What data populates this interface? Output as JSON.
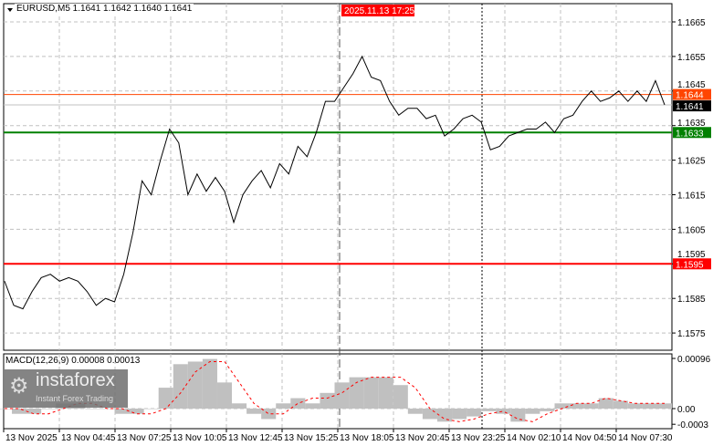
{
  "window": {
    "title": "EURUSD,M5  1.1641 1.1642 1.1640 1.1641"
  },
  "macd_label": "MACD(12,26,9) 0.00008 0.00013",
  "logo": {
    "brand": "instaforex",
    "tagline": "Instant Forex Trading"
  },
  "colors": {
    "price": "#000000",
    "level_orange": "#ff4500",
    "level_green": "#008000",
    "level_red": "#ff0000",
    "current_price_tag": "#000000",
    "histogram": "#c0c0c0",
    "signal": "#ff0000",
    "grid": "#c0c0c0"
  },
  "chart_data": [
    {
      "type": "line",
      "symbol": "EURUSD,M5",
      "ylim": [
        1.157,
        1.1672
      ],
      "yticks": [
        "1.1665",
        "1.1655",
        "1.1645",
        "1.1635",
        "1.1625",
        "1.1615",
        "1.1605",
        "1.1595",
        "1.1585",
        "1.1575"
      ],
      "xticks": [
        "13 Nov 2025",
        "13 Nov 04:45",
        "13 Nov 07:25",
        "13 Nov 10:05",
        "13 Nov 12:45",
        "13 Nov 15:25",
        "13 Nov 18:05",
        "13 Nov 20:45",
        "13 Nov 23:25",
        "14 Nov 02:10",
        "14 Nov 04:50",
        "14 Nov 07:30"
      ],
      "crosshair_time_label": "2025.11.13 17:25",
      "levels": [
        {
          "value": 1.1644,
          "label": "1.1644",
          "color": "#ff4500"
        },
        {
          "value": 1.1633,
          "label": "1.1633",
          "color": "#008000"
        },
        {
          "value": 1.1595,
          "label": "1.1595",
          "color": "#ff0000"
        }
      ],
      "current_price": {
        "value": 1.1641,
        "label": "1.1641"
      },
      "grid": true,
      "values": [
        1.159,
        1.1583,
        1.1582,
        1.1587,
        1.1591,
        1.1592,
        1.159,
        1.1591,
        1.159,
        1.1587,
        1.1583,
        1.1585,
        1.1584,
        1.1592,
        1.1604,
        1.1619,
        1.1615,
        1.1625,
        1.1634,
        1.163,
        1.1615,
        1.1621,
        1.1616,
        1.162,
        1.1616,
        1.1607,
        1.1615,
        1.1619,
        1.1622,
        1.1617,
        1.1624,
        1.1621,
        1.1629,
        1.1626,
        1.1633,
        1.1642,
        1.1642,
        1.1646,
        1.165,
        1.1655,
        1.1649,
        1.1648,
        1.1642,
        1.1638,
        1.164,
        1.164,
        1.1637,
        1.1638,
        1.1632,
        1.1634,
        1.1637,
        1.1638,
        1.1636,
        1.1628,
        1.1629,
        1.1632,
        1.1633,
        1.1634,
        1.1634,
        1.1636,
        1.1633,
        1.1637,
        1.1638,
        1.1642,
        1.1645,
        1.1642,
        1.1643,
        1.1645,
        1.1642,
        1.1645,
        1.1642,
        1.1648,
        1.1641
      ]
    },
    {
      "type": "bar",
      "indicator": "MACD(12,26,9)",
      "ylim": [
        -0.0003,
        0.00096
      ],
      "yticks": [
        "0.00096",
        "0.00",
        "-0.0003"
      ],
      "histogram": [
        0,
        -0.0001,
        -0.0001,
        0,
        0.0001,
        0.0001,
        0,
        0,
        -0.0001,
        -0.0001,
        0,
        0.0004,
        0.00085,
        0.0009,
        0.00095,
        0.0005,
        0.0001,
        -0.0001,
        -0.0002,
        0.0001,
        0.0002,
        0.0001,
        0.0003,
        0.0005,
        0.0006,
        0.0006,
        0.0006,
        0.00045,
        -0.0001,
        -0.0002,
        -0.00025,
        -0.0002,
        -0.00015,
        -5e-05,
        -0.0001,
        -0.00025,
        -0.0001,
        -5e-05,
        0.0001,
        0.0001,
        0.0001,
        0.0002,
        0.00015,
        0.0001,
        0.0001,
        0.0001
      ],
      "signal": [
        0,
        0,
        -0.0001,
        -0.0001,
        0,
        0.0001,
        0.0001,
        0,
        0,
        -0.0001,
        -0.0001,
        0,
        0.0003,
        0.0007,
        0.0009,
        0.0009,
        0.0005,
        0.0001,
        -0.0001,
        -0.0001,
        0.0001,
        0.0002,
        0.0002,
        0.0003,
        0.0005,
        0.0006,
        0.0006,
        0.0006,
        0.0004,
        0,
        -0.0002,
        -0.00025,
        -0.0002,
        -0.0001,
        -5e-05,
        -0.0002,
        -0.00025,
        -0.0001,
        0,
        0.0001,
        0.0001,
        0.0002,
        0.00015,
        0.0001,
        0.0001,
        0.0001
      ]
    }
  ]
}
